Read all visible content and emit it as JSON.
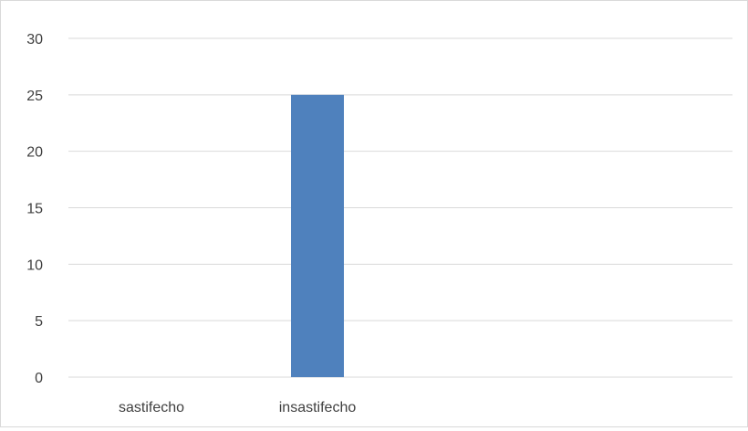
{
  "chart_data": {
    "type": "bar",
    "categories": [
      "sastifecho",
      "insastifecho",
      "",
      ""
    ],
    "values": [
      0,
      25,
      null,
      null
    ],
    "ylim": [
      0,
      30
    ],
    "yticks": [
      0,
      5,
      10,
      15,
      20,
      25,
      30
    ],
    "grid": true,
    "legend": "none",
    "colors": {
      "bar": "#4f81bd",
      "grid": "#d9d9d9",
      "axis": "#d9d9d9",
      "text": "#404040",
      "border": "#d9d9d9"
    }
  }
}
